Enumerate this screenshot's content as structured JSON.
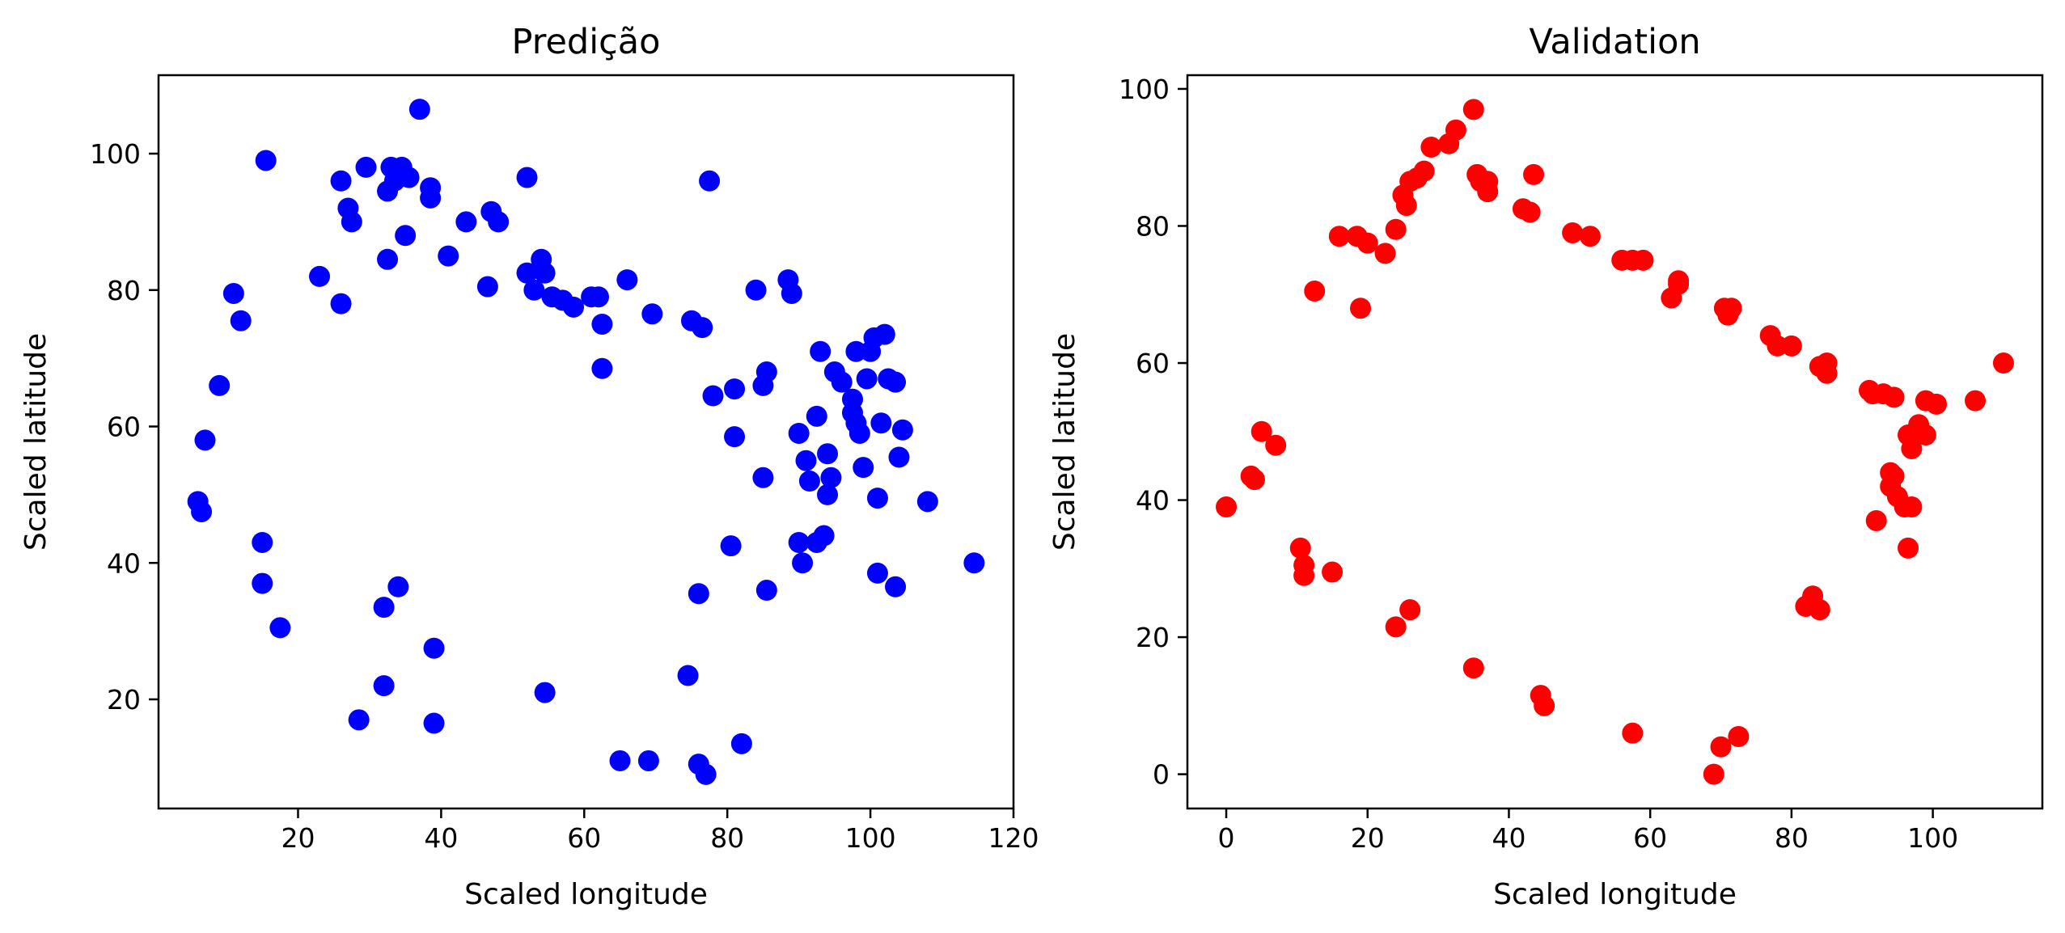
{
  "chart_data": [
    {
      "type": "scatter",
      "title": "Predição",
      "xlabel": "Scaled longitude",
      "ylabel": "Scaled latitude",
      "xlim": [
        0.5,
        120
      ],
      "ylim": [
        4,
        111.5
      ],
      "xticks": [
        20,
        40,
        60,
        80,
        100,
        120
      ],
      "yticks": [
        20,
        40,
        60,
        80,
        100
      ],
      "grid": false,
      "color": "#0000ff",
      "points": [
        [
          6,
          49
        ],
        [
          6.5,
          47.5
        ],
        [
          7,
          58
        ],
        [
          9,
          66
        ],
        [
          11,
          79.5
        ],
        [
          12,
          75.5
        ],
        [
          15,
          43
        ],
        [
          15,
          37
        ],
        [
          15.5,
          99
        ],
        [
          17.5,
          30.5
        ],
        [
          23,
          82
        ],
        [
          26,
          96
        ],
        [
          26,
          78
        ],
        [
          27,
          92
        ],
        [
          27.5,
          90
        ],
        [
          28.5,
          17
        ],
        [
          29.5,
          98
        ],
        [
          32,
          33.5
        ],
        [
          32,
          22
        ],
        [
          32.5,
          84.5
        ],
        [
          32.5,
          94.5
        ],
        [
          33,
          98
        ],
        [
          33.5,
          96
        ],
        [
          34.5,
          98
        ],
        [
          34,
          36.5
        ],
        [
          35,
          88
        ],
        [
          35.5,
          96.5
        ],
        [
          37,
          106.5
        ],
        [
          38.5,
          93.5
        ],
        [
          38.5,
          95
        ],
        [
          39,
          27.5
        ],
        [
          39,
          16.5
        ],
        [
          41,
          85
        ],
        [
          43.5,
          90
        ],
        [
          46.5,
          80.5
        ],
        [
          47,
          91.5
        ],
        [
          48,
          90
        ],
        [
          52,
          96.5
        ],
        [
          52,
          82.5
        ],
        [
          53,
          80
        ],
        [
          54,
          84.5
        ],
        [
          54.5,
          82.5
        ],
        [
          54.5,
          21
        ],
        [
          55.5,
          79
        ],
        [
          57,
          78.5
        ],
        [
          58.5,
          77.5
        ],
        [
          61,
          79
        ],
        [
          62,
          79
        ],
        [
          62.5,
          75
        ],
        [
          62.5,
          68.5
        ],
        [
          65,
          11
        ],
        [
          66,
          81.5
        ],
        [
          69,
          11
        ],
        [
          69.5,
          76.5
        ],
        [
          74.5,
          23.5
        ],
        [
          75,
          75.5
        ],
        [
          76,
          10.5
        ],
        [
          76,
          35.5
        ],
        [
          76.5,
          74.5
        ],
        [
          77,
          9
        ],
        [
          77.5,
          96
        ],
        [
          78,
          64.5
        ],
        [
          80.5,
          42.5
        ],
        [
          81,
          65.5
        ],
        [
          81,
          58.5
        ],
        [
          82,
          13.5
        ],
        [
          84,
          80
        ],
        [
          85,
          66
        ],
        [
          85,
          52.5
        ],
        [
          85.5,
          68
        ],
        [
          85.5,
          36
        ],
        [
          88.5,
          81.5
        ],
        [
          89,
          79.5
        ],
        [
          90,
          59
        ],
        [
          90,
          43
        ],
        [
          90.5,
          40
        ],
        [
          91,
          55
        ],
        [
          91.5,
          52
        ],
        [
          92.5,
          61.5
        ],
        [
          92.5,
          43
        ],
        [
          93,
          71
        ],
        [
          93.5,
          44
        ],
        [
          94,
          50
        ],
        [
          94,
          56
        ],
        [
          94.5,
          52.5
        ],
        [
          95,
          68
        ],
        [
          96,
          66.5
        ],
        [
          97.5,
          64
        ],
        [
          97.5,
          62
        ],
        [
          98,
          60.5
        ],
        [
          98,
          71
        ],
        [
          98.5,
          59
        ],
        [
          99,
          54
        ],
        [
          99.5,
          67
        ],
        [
          100,
          71
        ],
        [
          100.5,
          73
        ],
        [
          101,
          49.5
        ],
        [
          101,
          38.5
        ],
        [
          101.5,
          60.5
        ],
        [
          102,
          73.5
        ],
        [
          102.5,
          67
        ],
        [
          103.5,
          66.5
        ],
        [
          103.5,
          36.5
        ],
        [
          104,
          55.5
        ],
        [
          104.5,
          59.5
        ],
        [
          108,
          49
        ],
        [
          114.5,
          40
        ]
      ]
    },
    {
      "type": "scatter",
      "title": "Validation",
      "xlabel": "Scaled longitude",
      "ylabel": "Scaled latitude",
      "xlim": [
        -5.5,
        115.5
      ],
      "ylim": [
        -5,
        102
      ],
      "xticks": [
        0,
        20,
        40,
        60,
        80,
        100
      ],
      "yticks": [
        0,
        20,
        40,
        60,
        80,
        100
      ],
      "grid": false,
      "color": "#ff0000",
      "points": [
        [
          0,
          39
        ],
        [
          3.5,
          43.5
        ],
        [
          4,
          43
        ],
        [
          5,
          50
        ],
        [
          7,
          48
        ],
        [
          10.5,
          33
        ],
        [
          11,
          30.5
        ],
        [
          11,
          29
        ],
        [
          12.5,
          70.5
        ],
        [
          15,
          29.5
        ],
        [
          16,
          78.5
        ],
        [
          18.5,
          78.5
        ],
        [
          19,
          68
        ],
        [
          20,
          77.5
        ],
        [
          22.5,
          76
        ],
        [
          24,
          79.5
        ],
        [
          24,
          21.5
        ],
        [
          25,
          84.5
        ],
        [
          25.5,
          83
        ],
        [
          26,
          86.5
        ],
        [
          26,
          24
        ],
        [
          27,
          87
        ],
        [
          28,
          88
        ],
        [
          29,
          91.5
        ],
        [
          31.5,
          92
        ],
        [
          32.5,
          94
        ],
        [
          35,
          97
        ],
        [
          35,
          15.5
        ],
        [
          35.5,
          87.5
        ],
        [
          36,
          86.5
        ],
        [
          37,
          85
        ],
        [
          37,
          86.5
        ],
        [
          42,
          82.5
        ],
        [
          43,
          82
        ],
        [
          43.5,
          87.5
        ],
        [
          44.5,
          11.5
        ],
        [
          45,
          10
        ],
        [
          49,
          79
        ],
        [
          51.5,
          78.5
        ],
        [
          56,
          75
        ],
        [
          57.5,
          6
        ],
        [
          57.5,
          75
        ],
        [
          59,
          75
        ],
        [
          63,
          69.5
        ],
        [
          64,
          71.5
        ],
        [
          64,
          72
        ],
        [
          69,
          0
        ],
        [
          70,
          4
        ],
        [
          70.5,
          68
        ],
        [
          71,
          67
        ],
        [
          71.5,
          68
        ],
        [
          72.5,
          5.5
        ],
        [
          77,
          64
        ],
        [
          78,
          62.5
        ],
        [
          80,
          62.5
        ],
        [
          82,
          24.5
        ],
        [
          83,
          26
        ],
        [
          84,
          24
        ],
        [
          84,
          59.5
        ],
        [
          85,
          58.5
        ],
        [
          85,
          60
        ],
        [
          91,
          56
        ],
        [
          91.5,
          55.5
        ],
        [
          92,
          37
        ],
        [
          93,
          55.5
        ],
        [
          94,
          44
        ],
        [
          94,
          42
        ],
        [
          94.5,
          55
        ],
        [
          94.5,
          43.5
        ],
        [
          95,
          40.5
        ],
        [
          96,
          39
        ],
        [
          96.5,
          33
        ],
        [
          96.5,
          49.5
        ],
        [
          97,
          39
        ],
        [
          97,
          47.5
        ],
        [
          98,
          51
        ],
        [
          99,
          49.5
        ],
        [
          99,
          54.5
        ],
        [
          100.5,
          54
        ],
        [
          106,
          54.5
        ],
        [
          110,
          60
        ]
      ]
    }
  ]
}
